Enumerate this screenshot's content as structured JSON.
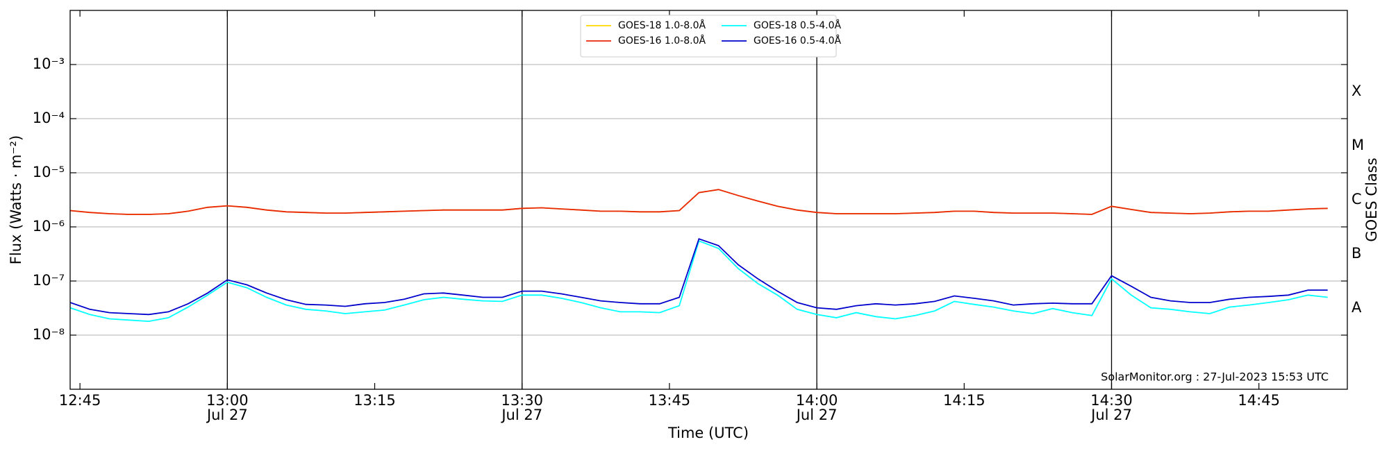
{
  "chart_data": {
    "type": "line",
    "xlabel": "Time (UTC)",
    "ylabel": "Flux (Watts · m⁻²)",
    "y2label": "GOES Class",
    "annotation": "SolarMonitor.org : 27-Jul-2023 15:53 UTC",
    "log_y": true,
    "grid": true,
    "legend": "upper center",
    "xlim": [
      "12:44",
      "14:54"
    ],
    "xticks": [
      {
        "value": "12:45",
        "label": "12:45"
      },
      {
        "value": "13:00",
        "label": "13:00",
        "date": "Jul 27"
      },
      {
        "value": "13:15",
        "label": "13:15"
      },
      {
        "value": "13:30",
        "label": "13:30",
        "date": "Jul 27"
      },
      {
        "value": "13:45",
        "label": "13:45"
      },
      {
        "value": "14:00",
        "label": "14:00",
        "date": "Jul 27"
      },
      {
        "value": "14:15",
        "label": "14:15"
      },
      {
        "value": "14:30",
        "label": "14:30",
        "date": "Jul 27"
      },
      {
        "value": "14:45",
        "label": "14:45"
      }
    ],
    "ylim": [
      1e-09,
      0.01
    ],
    "yticks": [
      {
        "value": 1e-08,
        "label": "10⁻⁸"
      },
      {
        "value": 1e-07,
        "label": "10⁻⁷"
      },
      {
        "value": 1e-06,
        "label": "10⁻⁶"
      },
      {
        "value": 1e-05,
        "label": "10⁻⁵"
      },
      {
        "value": 0.0001,
        "label": "10⁻⁴"
      },
      {
        "value": 0.001,
        "label": "10⁻³"
      }
    ],
    "y2lim": [
      1e-09,
      0.01
    ],
    "y2ticks": [
      {
        "value": 3.16e-08,
        "label": "A"
      },
      {
        "value": 3.16e-07,
        "label": "B"
      },
      {
        "value": 3.16e-06,
        "label": "C"
      },
      {
        "value": 3.16e-05,
        "label": "M"
      },
      {
        "value": 0.000316,
        "label": "X"
      }
    ],
    "x": [
      "12:44",
      "12:46",
      "12:48",
      "12:50",
      "12:52",
      "12:54",
      "12:56",
      "12:58",
      "13:00",
      "13:02",
      "13:04",
      "13:06",
      "13:08",
      "13:10",
      "13:12",
      "13:14",
      "13:16",
      "13:18",
      "13:20",
      "13:22",
      "13:24",
      "13:26",
      "13:28",
      "13:30",
      "13:32",
      "13:34",
      "13:36",
      "13:38",
      "13:40",
      "13:42",
      "13:44",
      "13:46",
      "13:48",
      "13:50",
      "13:52",
      "13:54",
      "13:56",
      "13:58",
      "14:00",
      "14:02",
      "14:04",
      "14:06",
      "14:08",
      "14:10",
      "14:12",
      "14:14",
      "14:16",
      "14:18",
      "14:20",
      "14:22",
      "14:24",
      "14:26",
      "14:28",
      "14:30",
      "14:32",
      "14:34",
      "14:36",
      "14:38",
      "14:40",
      "14:42",
      "14:44",
      "14:46",
      "14:48",
      "14:50",
      "14:52"
    ],
    "series": [
      {
        "name": "GOES-18 1.0-8.0Å",
        "color": "#ffd700",
        "values": [
          2e-06,
          1.85e-06,
          1.75e-06,
          1.7e-06,
          1.7e-06,
          1.75e-06,
          1.95e-06,
          2.3e-06,
          2.45e-06,
          2.3e-06,
          2.05e-06,
          1.9e-06,
          1.85e-06,
          1.8e-06,
          1.8e-06,
          1.85e-06,
          1.9e-06,
          1.95e-06,
          2e-06,
          2.05e-06,
          2.05e-06,
          2.05e-06,
          2.05e-06,
          2.2e-06,
          2.25e-06,
          2.15e-06,
          2.05e-06,
          1.95e-06,
          1.95e-06,
          1.9e-06,
          1.9e-06,
          2e-06,
          4.3e-06,
          4.9e-06,
          3.8e-06,
          3e-06,
          2.4e-06,
          2.05e-06,
          1.85e-06,
          1.75e-06,
          1.75e-06,
          1.75e-06,
          1.75e-06,
          1.8e-06,
          1.85e-06,
          1.95e-06,
          1.95e-06,
          1.85e-06,
          1.8e-06,
          1.8e-06,
          1.8e-06,
          1.75e-06,
          1.7e-06,
          2.4e-06,
          2.1e-06,
          1.85e-06,
          1.8e-06,
          1.75e-06,
          1.8e-06,
          1.9e-06,
          1.95e-06,
          1.95e-06,
          2.05e-06,
          2.15e-06,
          2.2e-06
        ]
      },
      {
        "name": "GOES-16 1.0-8.0Å",
        "color": "#e8260a",
        "values": [
          2e-06,
          1.85e-06,
          1.75e-06,
          1.7e-06,
          1.7e-06,
          1.75e-06,
          1.95e-06,
          2.3e-06,
          2.45e-06,
          2.3e-06,
          2.05e-06,
          1.9e-06,
          1.85e-06,
          1.8e-06,
          1.8e-06,
          1.85e-06,
          1.9e-06,
          1.95e-06,
          2e-06,
          2.05e-06,
          2.05e-06,
          2.05e-06,
          2.05e-06,
          2.2e-06,
          2.25e-06,
          2.15e-06,
          2.05e-06,
          1.95e-06,
          1.95e-06,
          1.9e-06,
          1.9e-06,
          2e-06,
          4.3e-06,
          4.9e-06,
          3.8e-06,
          3e-06,
          2.4e-06,
          2.05e-06,
          1.85e-06,
          1.75e-06,
          1.75e-06,
          1.75e-06,
          1.75e-06,
          1.8e-06,
          1.85e-06,
          1.95e-06,
          1.95e-06,
          1.85e-06,
          1.8e-06,
          1.8e-06,
          1.8e-06,
          1.75e-06,
          1.7e-06,
          2.4e-06,
          2.1e-06,
          1.85e-06,
          1.8e-06,
          1.75e-06,
          1.8e-06,
          1.9e-06,
          1.95e-06,
          1.95e-06,
          2.05e-06,
          2.15e-06,
          2.2e-06
        ]
      },
      {
        "name": "GOES-18 0.5-4.0Å",
        "color": "#00ffff",
        "values": [
          3.2e-08,
          2.4e-08,
          2e-08,
          1.9e-08,
          1.8e-08,
          2.1e-08,
          3.3e-08,
          5.5e-08,
          9.5e-08,
          7.5e-08,
          5e-08,
          3.6e-08,
          3e-08,
          2.8e-08,
          2.5e-08,
          2.7e-08,
          2.9e-08,
          3.6e-08,
          4.5e-08,
          5e-08,
          4.6e-08,
          4.3e-08,
          4.2e-08,
          5.5e-08,
          5.5e-08,
          4.8e-08,
          4e-08,
          3.2e-08,
          2.7e-08,
          2.7e-08,
          2.6e-08,
          3.5e-08,
          5.5e-07,
          4e-07,
          1.7e-07,
          9e-08,
          5.5e-08,
          3e-08,
          2.4e-08,
          2.1e-08,
          2.6e-08,
          2.2e-08,
          2e-08,
          2.3e-08,
          2.8e-08,
          4.2e-08,
          3.7e-08,
          3.3e-08,
          2.8e-08,
          2.5e-08,
          3.1e-08,
          2.6e-08,
          2.3e-08,
          1.1e-07,
          5.5e-08,
          3.2e-08,
          3e-08,
          2.7e-08,
          2.5e-08,
          3.3e-08,
          3.6e-08,
          4e-08,
          4.5e-08,
          5.5e-08,
          5e-08
        ]
      },
      {
        "name": "GOES-16 0.5-4.0Å",
        "color": "#0000cd",
        "values": [
          4e-08,
          3e-08,
          2.6e-08,
          2.5e-08,
          2.4e-08,
          2.7e-08,
          3.8e-08,
          6e-08,
          1.05e-07,
          8.5e-08,
          6e-08,
          4.5e-08,
          3.7e-08,
          3.6e-08,
          3.4e-08,
          3.8e-08,
          4e-08,
          4.6e-08,
          5.8e-08,
          6e-08,
          5.5e-08,
          5e-08,
          5e-08,
          6.5e-08,
          6.5e-08,
          5.8e-08,
          5e-08,
          4.3e-08,
          4e-08,
          3.8e-08,
          3.8e-08,
          5e-08,
          6e-07,
          4.5e-07,
          2e-07,
          1.1e-07,
          6.5e-08,
          4e-08,
          3.2e-08,
          3e-08,
          3.5e-08,
          3.8e-08,
          3.6e-08,
          3.8e-08,
          4.2e-08,
          5.3e-08,
          4.8e-08,
          4.3e-08,
          3.6e-08,
          3.8e-08,
          3.9e-08,
          3.8e-08,
          3.8e-08,
          1.25e-07,
          8e-08,
          5e-08,
          4.3e-08,
          4e-08,
          4e-08,
          4.6e-08,
          5e-08,
          5.2e-08,
          5.5e-08,
          6.8e-08,
          6.8e-08
        ]
      }
    ]
  }
}
